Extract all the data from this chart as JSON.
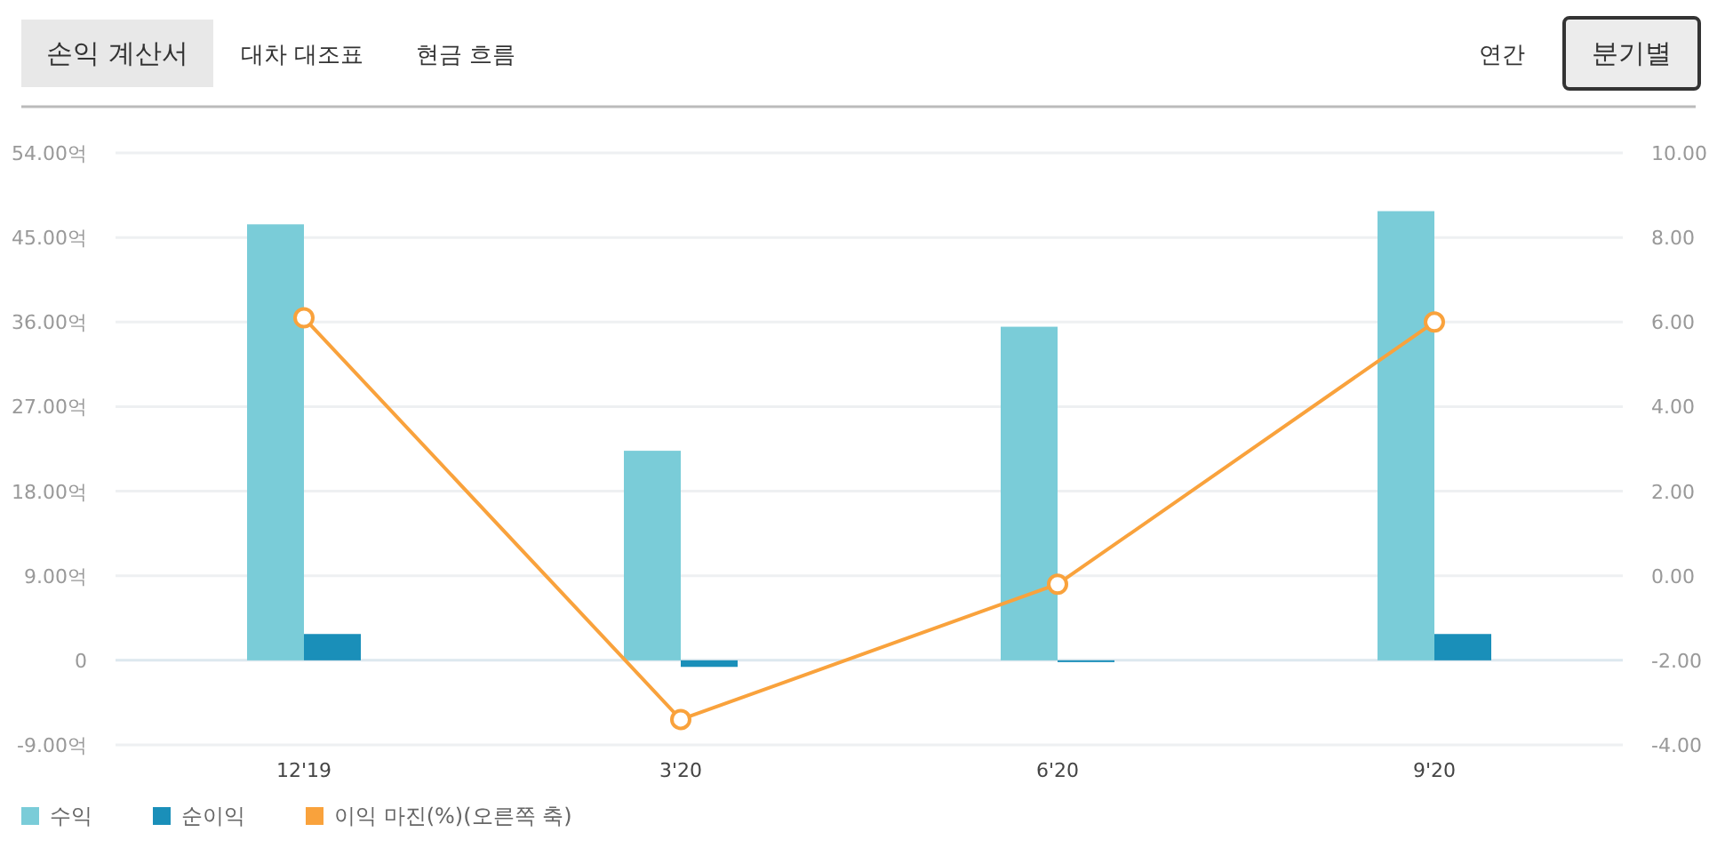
{
  "chart_data": {
    "type": "bar",
    "categories": [
      "12'19",
      "3'20",
      "6'20",
      "9'20"
    ],
    "series": [
      {
        "name": "수익",
        "color": "#7accd8",
        "values": [
          46.4,
          22.3,
          35.5,
          47.8
        ]
      },
      {
        "name": "순이익",
        "color": "#1a8fb9",
        "values": [
          2.8,
          -0.7,
          -0.1,
          2.8
        ]
      },
      {
        "name": "이익 마진(%)(오른쪽 축)",
        "type": "line",
        "axis": "y2",
        "color": "#f9a23c",
        "marker": "circle",
        "values": [
          6.1,
          -3.4,
          -0.2,
          6.0
        ]
      }
    ],
    "ylim": [
      -9,
      54
    ],
    "yticks": [
      {
        "value": -9,
        "label": "-9.00억"
      },
      0,
      {
        "value": 9,
        "label": "9.00억"
      },
      {
        "value": 18,
        "label": "18.00억"
      },
      {
        "value": 27,
        "label": "27.00억"
      },
      {
        "value": 36,
        "label": "36.00억"
      },
      {
        "value": 45,
        "label": "45.00억"
      },
      {
        "value": 54,
        "label": "54.00억"
      }
    ],
    "y2lim": [
      -4,
      10
    ],
    "y2ticks": [
      {
        "value": -4,
        "label": "-4.00"
      },
      {
        "value": -2,
        "label": "-2.00"
      },
      {
        "value": 0,
        "label": "0.00"
      },
      {
        "value": 2,
        "label": "2.00"
      },
      {
        "value": 4,
        "label": "4.00"
      },
      {
        "value": 6,
        "label": "6.00"
      },
      {
        "value": 8,
        "label": "8.00"
      },
      {
        "value": 10,
        "label": "10.00"
      }
    ],
    "grid": "y",
    "legend": "bottom left",
    "annotations": [
      "손익 계산서",
      "대차 대조표",
      "현금 흐름",
      "연간",
      "분기별"
    ]
  }
}
